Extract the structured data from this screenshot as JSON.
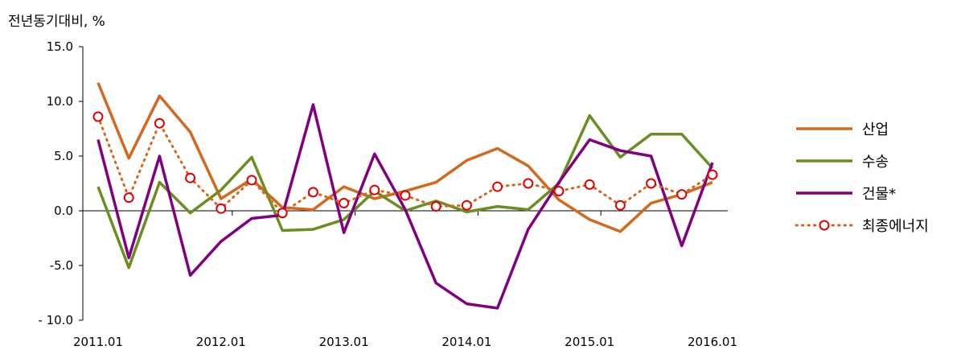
{
  "chart_data": {
    "type": "line",
    "unit_label": "전년동기대비, %",
    "x": [
      "2011.01",
      "2011.04",
      "2011.07",
      "2011.10",
      "2012.01",
      "2012.04",
      "2012.07",
      "2012.10",
      "2013.01",
      "2013.04",
      "2013.07",
      "2013.10",
      "2014.01",
      "2014.04",
      "2014.07",
      "2014.10",
      "2015.01",
      "2015.04",
      "2015.07",
      "2015.10",
      "2016.01"
    ],
    "x_tick_labels": [
      "2011.01",
      "2012.01",
      "2013.01",
      "2014.01",
      "2015.01",
      "2016.01"
    ],
    "y_tick_labels": [
      "15.0",
      "10.0",
      "5.0",
      "0.0",
      "-5.0",
      "- 10.0"
    ],
    "ylim": [
      -10,
      15
    ],
    "y_ticks": [
      15,
      10,
      5,
      0,
      -5,
      -10
    ],
    "grid": false,
    "legend_position": "right",
    "series": [
      {
        "name": "산업",
        "color": "#d2691e",
        "style": "solid",
        "values": [
          11.7,
          4.8,
          10.5,
          7.2,
          1.1,
          2.9,
          0.3,
          0.1,
          2.2,
          1.1,
          1.8,
          2.6,
          4.6,
          5.7,
          4.1,
          1.0,
          -0.8,
          -1.9,
          0.7,
          1.5,
          2.6
        ]
      },
      {
        "name": "수송",
        "color": "#6b8e23",
        "style": "solid",
        "values": [
          2.2,
          -5.2,
          2.6,
          -0.2,
          1.9,
          4.9,
          -1.8,
          -1.7,
          -0.8,
          1.8,
          0.0,
          0.9,
          -0.1,
          0.4,
          0.1,
          2.5,
          8.7,
          4.9,
          7.0,
          7.0,
          3.9
        ]
      },
      {
        "name": "건물*",
        "color": "#800080",
        "style": "solid",
        "values": [
          6.5,
          -4.3,
          5.0,
          -5.9,
          -2.8,
          -0.7,
          -0.4,
          9.7,
          -2.0,
          5.2,
          0.1,
          -6.6,
          -8.5,
          -8.9,
          -1.7,
          2.6,
          6.5,
          5.5,
          5.0,
          -3.2,
          4.4
        ]
      },
      {
        "name": "최종에너지",
        "color": "#d2691e",
        "style": "dotted",
        "marker": "open-circle",
        "marker_color": "#e00000",
        "values": [
          8.6,
          1.2,
          8.0,
          3.0,
          0.2,
          2.8,
          -0.2,
          1.7,
          0.7,
          1.9,
          1.4,
          0.4,
          0.5,
          2.2,
          2.5,
          1.8,
          2.4,
          0.5,
          2.5,
          1.5,
          3.3
        ]
      }
    ]
  }
}
